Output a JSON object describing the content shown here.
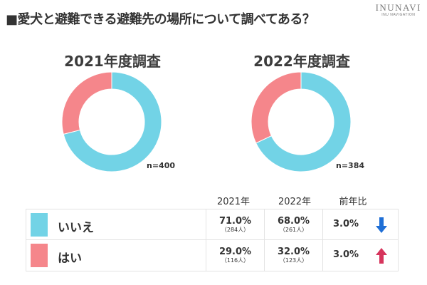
{
  "title": "■愛犬と避難できる避難先の場所について調べてある？",
  "logo": {
    "main": "INUNAVI",
    "sub": "INU NAVIGATION"
  },
  "colors": {
    "no": "#72d3e6",
    "yes": "#f5868b",
    "down": "#1f6fd6",
    "up": "#d6345c"
  },
  "table": {
    "headers": [
      "2021年",
      "2022年",
      "前年比"
    ],
    "rows": [
      {
        "label": "いいえ",
        "pct2021": "71.0%",
        "cnt2021": "（284人）",
        "pct2022": "68.0%",
        "cnt2022": "（261人）",
        "diff": "3.0%",
        "direction": "down"
      },
      {
        "label": "はい",
        "pct2021": "29.0%",
        "cnt2021": "（116人）",
        "pct2022": "32.0%",
        "cnt2022": "（123人）",
        "diff": "3.0%",
        "direction": "up"
      }
    ]
  },
  "chart_data": [
    {
      "type": "pie",
      "title": "2021年度調査",
      "categories": [
        "いいえ",
        "はい"
      ],
      "values": [
        71.0,
        29.0
      ],
      "n_label": "n=400"
    },
    {
      "type": "pie",
      "title": "2022年度調査",
      "categories": [
        "いいえ",
        "はい"
      ],
      "values": [
        68.0,
        32.0
      ],
      "n_label": "n=384"
    }
  ]
}
